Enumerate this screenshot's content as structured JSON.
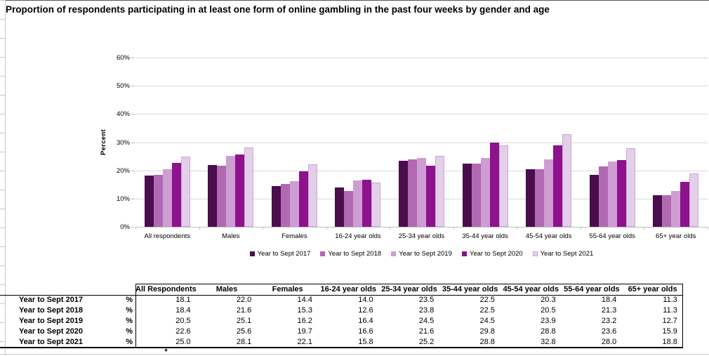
{
  "title": "Proportion of respondents participating in at least one form of online gambling in the past four weeks by gender and age",
  "chart_data": {
    "type": "bar",
    "title": "",
    "xlabel": "",
    "ylabel": "Percent",
    "ylim": [
      0,
      60
    ],
    "ytick_step": 10,
    "ytick_suffix": "%",
    "grid": true,
    "legend_position": "bottom",
    "categories": [
      "All respondents",
      "Males",
      "Females",
      "16-24 year olds",
      "25-34 year olds",
      "35-44 year olds",
      "45-54 year olds",
      "55-64 year olds",
      "65+ year olds"
    ],
    "series": [
      {
        "name": "Year to Sept 2017",
        "color": "#4A0D4E",
        "values": [
          18.1,
          22.0,
          14.4,
          14.0,
          23.5,
          22.5,
          20.3,
          18.4,
          11.3
        ]
      },
      {
        "name": "Year to Sept 2018",
        "color": "#B169B1",
        "values": [
          18.4,
          21.6,
          15.3,
          12.6,
          23.8,
          22.5,
          20.5,
          21.3,
          11.3
        ]
      },
      {
        "name": "Year to Sept 2019",
        "color": "#CE9DD3",
        "values": [
          20.5,
          25.1,
          16.2,
          16.4,
          24.5,
          24.5,
          23.9,
          23.2,
          12.7
        ]
      },
      {
        "name": "Year to Sept 2020",
        "color": "#8E118E",
        "values": [
          22.6,
          25.6,
          19.7,
          16.6,
          21.6,
          29.8,
          28.8,
          23.6,
          15.9
        ]
      },
      {
        "name": "Year to Sept 2021",
        "color": "#E3CFE9",
        "border_color": "#C9A9D2",
        "values": [
          25.0,
          28.1,
          22.1,
          15.8,
          25.2,
          28.8,
          32.8,
          28.0,
          18.8
        ]
      }
    ]
  },
  "table": {
    "unit_label": "%",
    "columns": [
      "All Respondents",
      "Males",
      "Females",
      "16-24 year olds",
      "25-34 year olds",
      "35-44 year olds",
      "45-54 year olds",
      "55-64 year olds",
      "65+ year olds"
    ],
    "rows": [
      {
        "label": "Year to Sept 2017",
        "values": [
          "18.1",
          "22.0",
          "14.4",
          "14.0",
          "23.5",
          "22.5",
          "20.3",
          "18.4",
          "11.3"
        ]
      },
      {
        "label": "Year to Sept 2018",
        "values": [
          "18.4",
          "21.6",
          "15.3",
          "12.6",
          "23.8",
          "22.5",
          "20.5",
          "21.3",
          "11.3"
        ]
      },
      {
        "label": "Year to Sept 2019",
        "values": [
          "20.5",
          "25.1",
          "16.2",
          "16.4",
          "24.5",
          "24.5",
          "23.9",
          "23.2",
          "12.7"
        ]
      },
      {
        "label": "Year to Sept 2020",
        "values": [
          "22.6",
          "25.6",
          "19.7",
          "16.6",
          "21.6",
          "29.8",
          "28.8",
          "23.6",
          "15.9"
        ]
      },
      {
        "label": "Year to Sept 2021",
        "values": [
          "25.0",
          "28.1",
          "22.1",
          "15.8",
          "25.2",
          "28.8",
          "32.8",
          "28.0",
          "18.8"
        ]
      }
    ],
    "footnote": "*"
  },
  "colors": {
    "gridline": "#d9d9d9",
    "axis": "#c0c0c0",
    "table_border": "#000000"
  }
}
